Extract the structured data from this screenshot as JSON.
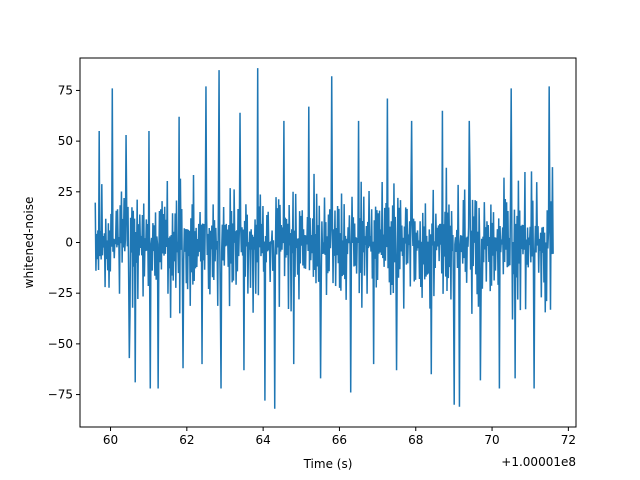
{
  "chart_data": {
    "type": "line",
    "title": "",
    "xlabel": "Time (s)",
    "ylabel": "whitened-noise",
    "x_offset_label": "+1.00001e8",
    "x_offset": 100001000,
    "xlim": [
      59.2,
      72.2
    ],
    "ylim": [
      -91,
      91
    ],
    "xticks": [
      60,
      62,
      64,
      66,
      68,
      70,
      72
    ],
    "yticks": [
      -75,
      -50,
      -25,
      0,
      25,
      50,
      75
    ],
    "grid": false,
    "legend": "none",
    "series_color": "#1f77b4",
    "series": [
      {
        "x_range": [
          59.6,
          71.6
        ],
        "sample_count": 700,
        "typical_range": [
          -38,
          38
        ],
        "outlier_peaks": [
          {
            "x": 59.7,
            "y": 55
          },
          {
            "x": 60.05,
            "y": 76
          },
          {
            "x": 60.4,
            "y": 53
          },
          {
            "x": 61.0,
            "y": 55
          },
          {
            "x": 61.8,
            "y": 62
          },
          {
            "x": 62.5,
            "y": 77
          },
          {
            "x": 62.85,
            "y": 85
          },
          {
            "x": 63.4,
            "y": 64
          },
          {
            "x": 63.85,
            "y": 86
          },
          {
            "x": 64.05,
            "y": 75
          },
          {
            "x": 64.55,
            "y": 60
          },
          {
            "x": 65.2,
            "y": 67
          },
          {
            "x": 65.8,
            "y": 82
          },
          {
            "x": 66.5,
            "y": 60
          },
          {
            "x": 67.25,
            "y": 71
          },
          {
            "x": 67.9,
            "y": 60
          },
          {
            "x": 68.7,
            "y": 65
          },
          {
            "x": 69.4,
            "y": 60
          },
          {
            "x": 70.5,
            "y": 76
          },
          {
            "x": 71.5,
            "y": 77
          },
          {
            "x": 60.5,
            "y": -57
          },
          {
            "x": 60.65,
            "y": -69
          },
          {
            "x": 61.05,
            "y": -72
          },
          {
            "x": 61.25,
            "y": -72
          },
          {
            "x": 61.9,
            "y": -62
          },
          {
            "x": 62.4,
            "y": -60
          },
          {
            "x": 62.9,
            "y": -72
          },
          {
            "x": 63.5,
            "y": -63
          },
          {
            "x": 64.05,
            "y": -78
          },
          {
            "x": 64.3,
            "y": -82
          },
          {
            "x": 64.8,
            "y": -60
          },
          {
            "x": 65.5,
            "y": -67
          },
          {
            "x": 66.3,
            "y": -74
          },
          {
            "x": 66.9,
            "y": -60
          },
          {
            "x": 67.5,
            "y": -63
          },
          {
            "x": 68.4,
            "y": -65
          },
          {
            "x": 69.0,
            "y": -80
          },
          {
            "x": 69.15,
            "y": -81
          },
          {
            "x": 69.7,
            "y": -68
          },
          {
            "x": 70.2,
            "y": -72
          },
          {
            "x": 70.6,
            "y": -67
          },
          {
            "x": 71.1,
            "y": -72
          }
        ]
      }
    ]
  }
}
